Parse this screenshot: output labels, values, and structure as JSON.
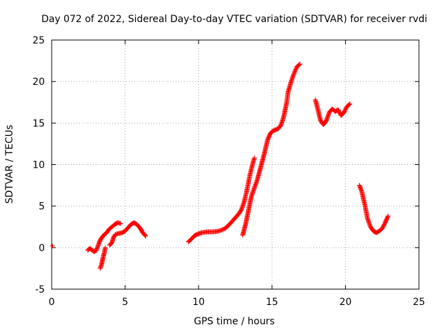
{
  "chart_data": {
    "type": "scatter",
    "title": "Day 072 of 2022, Sidereal Day-to-day VTEC variation (SDTVAR) for receiver rvdi",
    "xlabel": "GPS time / hours",
    "ylabel": "SDTVAR / TECUs",
    "xlim": [
      0,
      25
    ],
    "ylim": [
      -5,
      25
    ],
    "xticks": [
      0,
      5,
      10,
      15,
      20,
      25
    ],
    "yticks": [
      -5,
      0,
      5,
      10,
      15,
      20,
      25
    ],
    "grid": true,
    "marker": "+",
    "series": [
      {
        "name": "SDTVAR",
        "color": "#ff0000",
        "segments": [
          [
            [
              0.05,
              0.2
            ]
          ],
          [
            [
              2.45,
              -0.3
            ],
            [
              2.6,
              -0.1
            ],
            [
              2.75,
              -0.3
            ],
            [
              2.9,
              -0.5
            ],
            [
              3.05,
              -0.3
            ],
            [
              3.15,
              0.2
            ],
            [
              3.3,
              0.9
            ],
            [
              3.45,
              1.3
            ],
            [
              3.6,
              1.6
            ],
            [
              3.75,
              1.8
            ],
            [
              3.9,
              2.2
            ],
            [
              4.1,
              2.5
            ],
            [
              4.3,
              2.8
            ],
            [
              4.5,
              3.0
            ],
            [
              4.7,
              2.9
            ]
          ],
          [
            [
              3.3,
              -2.5
            ],
            [
              3.4,
              -2.0
            ],
            [
              3.5,
              -1.2
            ],
            [
              3.6,
              -0.5
            ],
            [
              3.65,
              0.0
            ]
          ],
          [
            [
              3.95,
              0.3
            ],
            [
              4.1,
              0.6
            ],
            [
              4.2,
              1.2
            ],
            [
              4.35,
              1.6
            ],
            [
              4.55,
              1.7
            ],
            [
              4.8,
              1.8
            ],
            [
              5.0,
              2.0
            ],
            [
              5.2,
              2.4
            ],
            [
              5.4,
              2.8
            ],
            [
              5.6,
              3.0
            ],
            [
              5.8,
              2.8
            ],
            [
              6.0,
              2.4
            ],
            [
              6.2,
              1.8
            ],
            [
              6.4,
              1.4
            ]
          ],
          [
            [
              9.3,
              0.7
            ],
            [
              9.5,
              1.0
            ],
            [
              9.7,
              1.4
            ],
            [
              9.9,
              1.6
            ],
            [
              10.2,
              1.8
            ],
            [
              10.6,
              1.9
            ],
            [
              11.0,
              1.9
            ],
            [
              11.4,
              2.0
            ],
            [
              11.8,
              2.3
            ],
            [
              12.1,
              2.8
            ],
            [
              12.4,
              3.4
            ],
            [
              12.7,
              4.0
            ],
            [
              12.9,
              4.5
            ],
            [
              13.1,
              5.5
            ],
            [
              13.3,
              7.0
            ],
            [
              13.5,
              8.8
            ],
            [
              13.7,
              10.2
            ],
            [
              13.8,
              10.8
            ]
          ],
          [
            [
              13.0,
              1.5
            ],
            [
              13.2,
              2.8
            ],
            [
              13.4,
              4.5
            ],
            [
              13.6,
              6.2
            ],
            [
              13.8,
              7.2
            ],
            [
              14.0,
              8.2
            ],
            [
              14.2,
              9.5
            ],
            [
              14.4,
              10.8
            ],
            [
              14.5,
              11.5
            ],
            [
              14.7,
              13.0
            ],
            [
              14.9,
              13.8
            ],
            [
              15.1,
              14.1
            ],
            [
              15.4,
              14.3
            ],
            [
              15.6,
              14.7
            ],
            [
              15.8,
              15.8
            ],
            [
              16.0,
              17.5
            ],
            [
              16.1,
              18.8
            ],
            [
              16.3,
              20.0
            ],
            [
              16.5,
              21.0
            ],
            [
              16.7,
              21.8
            ],
            [
              16.9,
              22.1
            ]
          ],
          [
            [
              17.95,
              17.8
            ],
            [
              18.1,
              16.8
            ],
            [
              18.3,
              15.3
            ],
            [
              18.5,
              14.8
            ],
            [
              18.7,
              15.3
            ],
            [
              18.9,
              16.3
            ],
            [
              19.1,
              16.7
            ],
            [
              19.3,
              16.4
            ],
            [
              19.5,
              16.6
            ],
            [
              19.7,
              15.9
            ],
            [
              19.9,
              16.3
            ],
            [
              20.1,
              17.0
            ],
            [
              20.3,
              17.3
            ]
          ],
          [
            [
              20.95,
              7.5
            ],
            [
              21.1,
              6.8
            ],
            [
              21.3,
              5.3
            ],
            [
              21.5,
              3.5
            ],
            [
              21.7,
              2.5
            ],
            [
              21.9,
              2.0
            ],
            [
              22.1,
              1.8
            ],
            [
              22.3,
              2.0
            ],
            [
              22.5,
              2.3
            ],
            [
              22.7,
              3.0
            ],
            [
              22.9,
              3.8
            ]
          ]
        ]
      }
    ]
  }
}
